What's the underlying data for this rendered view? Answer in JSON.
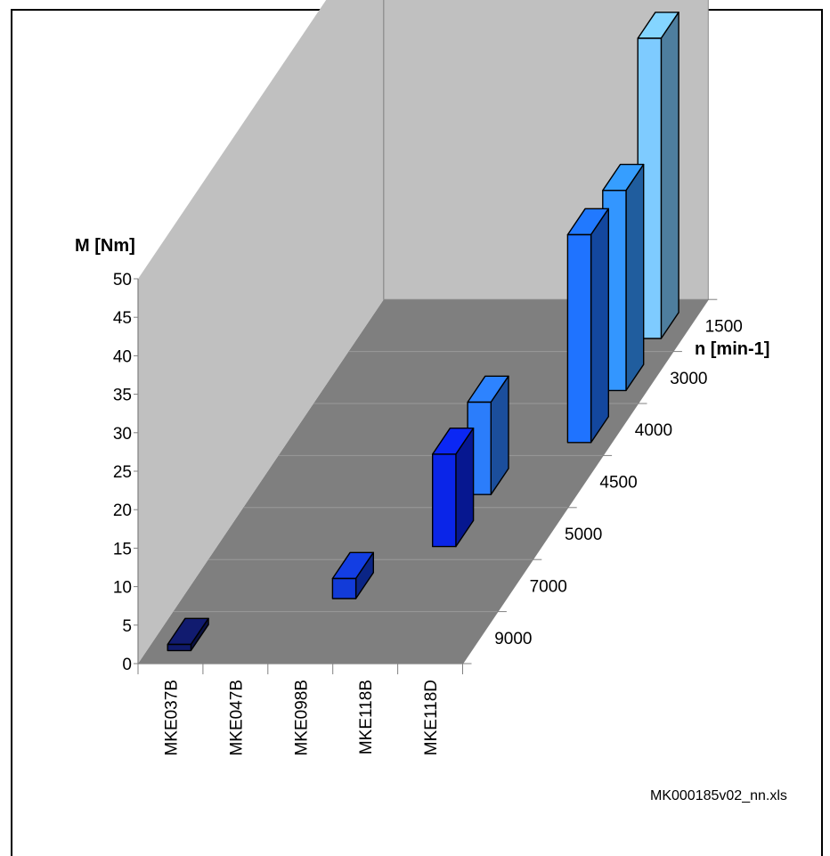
{
  "chart_data": {
    "type": "bar3d",
    "ylabel": "M [Nm]",
    "zlabel": "n [min-1]",
    "y_ticks": [
      0,
      5,
      10,
      15,
      20,
      25,
      30,
      35,
      40,
      45,
      50
    ],
    "ylim": [
      0,
      50
    ],
    "x_categories": [
      "MKE037B",
      "MKE047B",
      "MKE098B",
      "MKE118B",
      "MKE118D"
    ],
    "z_categories": [
      "1500",
      "3000",
      "4000",
      "4500",
      "5000",
      "7000",
      "9000"
    ],
    "bars": [
      {
        "category": "MKE037B",
        "speed": "9000",
        "value": 0.8
      },
      {
        "category": "MKE098B",
        "speed": "7000",
        "value": 2.6
      },
      {
        "category": "MKE118B",
        "speed": "5000",
        "value": 12.0
      },
      {
        "category": "MKE118B",
        "speed": "4500",
        "value": 12.0
      },
      {
        "category": "MKE118D",
        "speed": "4000",
        "value": 27.0
      },
      {
        "category": "MKE118D",
        "speed": "3000",
        "value": 26.0
      },
      {
        "category": "MKE118D",
        "speed": "1500",
        "value": 39.0
      }
    ],
    "colors": {
      "1500": "#7ecbff",
      "3000": "#3396ff",
      "4000": "#1f73ff",
      "4500": "#2b7dfb",
      "5000": "#0a25e8",
      "7000": "#123bd8",
      "9000": "#101a6a"
    },
    "grid": true
  },
  "footer": {
    "source_file": "MK000185v02_nn.xls"
  }
}
